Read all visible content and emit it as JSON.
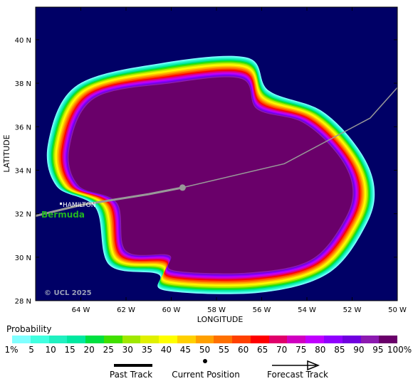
{
  "map": {
    "x_axis_label": "LONGITUDE",
    "y_axis_label": "LATITUDE",
    "lon_ticks": [
      "64 W",
      "62 W",
      "60 W",
      "58 W",
      "56 W",
      "54 W",
      "52 W",
      "50 W"
    ],
    "lat_ticks": [
      "40 N",
      "38 N",
      "36 N",
      "34 N",
      "32 N",
      "30 N",
      "28 N"
    ],
    "lon_range": [
      -66,
      -50
    ],
    "lat_range": [
      28,
      41.5
    ],
    "place_city": "HAMILTON",
    "place_island": "Bermuda",
    "copyright": "© UCL 2025",
    "ocean_color": "#000066",
    "track_color": "#999999"
  },
  "chart_data": {
    "type": "heatmap",
    "title": "",
    "current_position": {
      "lon": -59.5,
      "lat": 33.2
    },
    "past_track": [
      {
        "lon": -66.0,
        "lat": 31.9
      },
      {
        "lon": -64.0,
        "lat": 32.4
      },
      {
        "lon": -61.0,
        "lat": 32.9
      },
      {
        "lon": -59.5,
        "lat": 33.2
      }
    ],
    "forecast_track": [
      {
        "lon": -59.5,
        "lat": 33.2
      },
      {
        "lon": -55.0,
        "lat": 34.3
      },
      {
        "lon": -51.2,
        "lat": 36.4
      },
      {
        "lon": -50.0,
        "lat": 37.8
      }
    ],
    "probability_contour_core": [
      {
        "lon": -63.4,
        "lat": 37.3
      },
      {
        "lon": -60.0,
        "lat": 38.0
      },
      {
        "lon": -56.9,
        "lat": 38.2
      },
      {
        "lon": -56.2,
        "lat": 36.8
      },
      {
        "lon": -54.2,
        "lat": 36.2
      },
      {
        "lon": -52.7,
        "lat": 34.8
      },
      {
        "lon": -52.0,
        "lat": 33.3
      },
      {
        "lon": -52.3,
        "lat": 31.8
      },
      {
        "lon": -53.8,
        "lat": 29.9
      },
      {
        "lon": -56.5,
        "lat": 29.3
      },
      {
        "lon": -59.9,
        "lat": 29.4
      },
      {
        "lon": -60.1,
        "lat": 30.1
      },
      {
        "lon": -62.0,
        "lat": 30.3
      },
      {
        "lon": -62.4,
        "lat": 32.5
      },
      {
        "lon": -64.1,
        "lat": 33.3
      },
      {
        "lon": -64.5,
        "lat": 35.0
      }
    ]
  },
  "legend": {
    "title": "Probability",
    "colors": [
      "#80ffff",
      "#40ffe0",
      "#20f0c0",
      "#00e8a0",
      "#00e040",
      "#40e000",
      "#a0e800",
      "#e0f000",
      "#ffff00",
      "#ffd000",
      "#ffa000",
      "#ff7000",
      "#ff4000",
      "#ff0000",
      "#e0006a",
      "#d000c0",
      "#c000ff",
      "#9000ff",
      "#7000e0",
      "#8c1ab0",
      "#6a006a"
    ],
    "labels": [
      "1%",
      "5",
      "10",
      "15",
      "20",
      "25",
      "30",
      "35",
      "40",
      "45",
      "50",
      "55",
      "60",
      "65",
      "70",
      "75",
      "80",
      "85",
      "90",
      "95",
      "100%"
    ]
  },
  "key": {
    "past_track": "Past Track",
    "current_position": "Current Position",
    "forecast_track": "Forecast Track"
  }
}
